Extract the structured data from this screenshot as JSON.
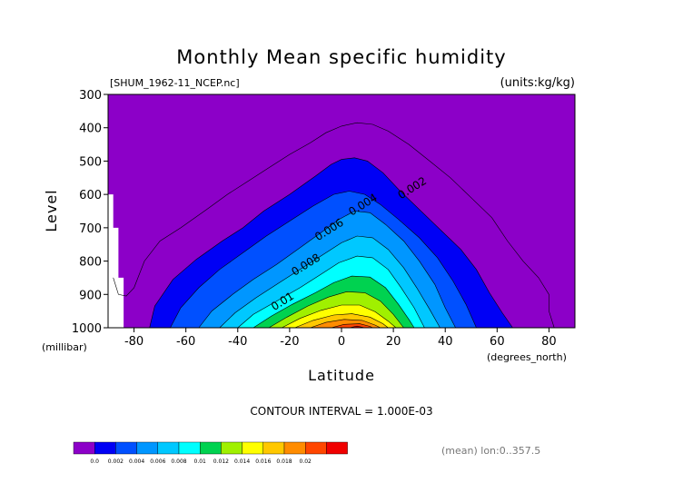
{
  "chart_data": {
    "type": "heatmap",
    "title": "Monthly Mean specific humidity",
    "file_label": "[SHUM_1962-11_NCEP.nc]",
    "units_label": "(units:kg/kg)",
    "xlabel": "Latitude",
    "x_units": "(degrees_north)",
    "ylabel": "Level",
    "y_units": "(millibar)",
    "xlim": [
      -90,
      90
    ],
    "ylim": [
      300,
      1000
    ],
    "x_ticks": [
      -80,
      -60,
      -40,
      -20,
      0,
      20,
      40,
      60,
      80
    ],
    "y_ticks": [
      300,
      400,
      500,
      600,
      700,
      800,
      900,
      1000
    ],
    "y_inverted": true,
    "contour_interval_label": "CONTOUR INTERVAL = 1.000E-03",
    "mean_label": "(mean) lon:0..357.5",
    "contour_labels": [
      {
        "text": "0.002",
        "lat": 28,
        "level": 590
      },
      {
        "text": "0.004",
        "lat": 9,
        "level": 640
      },
      {
        "text": "0.006",
        "lat": -4,
        "level": 715
      },
      {
        "text": "0.008",
        "lat": -13,
        "level": 820
      },
      {
        "text": "0.01",
        "lat": -22,
        "level": 930
      }
    ],
    "colorbar": {
      "levels": [
        "0.0",
        "0.002",
        "0.004",
        "0.006",
        "0.008",
        "0.01",
        "0.012",
        "0.014",
        "0.016",
        "0.018",
        "0.02"
      ],
      "colors": [
        "#8c00c8",
        "#0000f5",
        "#0050ff",
        "#0096ff",
        "#00c8ff",
        "#00ffff",
        "#00d250",
        "#a0f000",
        "#ffff00",
        "#ffc800",
        "#ff8c00",
        "#ff4600",
        "#f00000"
      ]
    },
    "contours": [
      {
        "level": 0.002,
        "color_index": 1,
        "points": [
          [
            -74,
            1000
          ],
          [
            -72,
            935
          ],
          [
            -65,
            855
          ],
          [
            -56,
            795
          ],
          [
            -46,
            740
          ],
          [
            -38,
            700
          ],
          [
            -30,
            650
          ],
          [
            -20,
            600
          ],
          [
            -10,
            545
          ],
          [
            -4,
            510
          ],
          [
            0,
            495
          ],
          [
            5,
            490
          ],
          [
            10,
            500
          ],
          [
            16,
            535
          ],
          [
            22,
            585
          ],
          [
            30,
            645
          ],
          [
            38,
            705
          ],
          [
            46,
            765
          ],
          [
            52,
            825
          ],
          [
            57,
            895
          ],
          [
            62,
            955
          ],
          [
            66,
            1000
          ]
        ]
      },
      {
        "level": 0.003,
        "color_index": 2,
        "points": [
          [
            -66,
            1000
          ],
          [
            -62,
            940
          ],
          [
            -55,
            880
          ],
          [
            -47,
            825
          ],
          [
            -38,
            775
          ],
          [
            -29,
            725
          ],
          [
            -20,
            680
          ],
          [
            -11,
            635
          ],
          [
            -3,
            600
          ],
          [
            3,
            590
          ],
          [
            9,
            600
          ],
          [
            15,
            630
          ],
          [
            22,
            675
          ],
          [
            30,
            730
          ],
          [
            37,
            790
          ],
          [
            43,
            860
          ],
          [
            48,
            930
          ],
          [
            52,
            1000
          ]
        ]
      },
      {
        "level": 0.004,
        "color_index": 3,
        "points": [
          [
            -55,
            1000
          ],
          [
            -50,
            950
          ],
          [
            -42,
            900
          ],
          [
            -34,
            855
          ],
          [
            -25,
            810
          ],
          [
            -16,
            760
          ],
          [
            -8,
            715
          ],
          [
            -1,
            675
          ],
          [
            5,
            650
          ],
          [
            11,
            655
          ],
          [
            17,
            690
          ],
          [
            24,
            740
          ],
          [
            30,
            800
          ],
          [
            36,
            870
          ],
          [
            40,
            940
          ],
          [
            44,
            1000
          ]
        ]
      },
      {
        "level": 0.005,
        "color_index": 4,
        "points": [
          [
            -47,
            1000
          ],
          [
            -41,
            955
          ],
          [
            -33,
            910
          ],
          [
            -24,
            865
          ],
          [
            -15,
            820
          ],
          [
            -7,
            780
          ],
          [
            0,
            745
          ],
          [
            6,
            725
          ],
          [
            12,
            730
          ],
          [
            18,
            765
          ],
          [
            24,
            820
          ],
          [
            29,
            880
          ],
          [
            34,
            945
          ],
          [
            38,
            1000
          ]
        ]
      },
      {
        "level": 0.006,
        "color_index": 5,
        "points": [
          [
            -40,
            1000
          ],
          [
            -34,
            960
          ],
          [
            -25,
            920
          ],
          [
            -16,
            880
          ],
          [
            -8,
            840
          ],
          [
            -1,
            805
          ],
          [
            6,
            785
          ],
          [
            12,
            790
          ],
          [
            18,
            825
          ],
          [
            23,
            880
          ],
          [
            28,
            940
          ],
          [
            32,
            1000
          ]
        ]
      },
      {
        "level": 0.007,
        "color_index": 6,
        "points": [
          [
            -34,
            1000
          ],
          [
            -27,
            965
          ],
          [
            -19,
            930
          ],
          [
            -10,
            895
          ],
          [
            -3,
            865
          ],
          [
            4,
            845
          ],
          [
            11,
            848
          ],
          [
            17,
            880
          ],
          [
            22,
            930
          ],
          [
            26,
            975
          ],
          [
            28,
            1000
          ]
        ]
      },
      {
        "level": 0.008,
        "color_index": 7,
        "points": [
          [
            -28,
            1000
          ],
          [
            -21,
            968
          ],
          [
            -13,
            935
          ],
          [
            -5,
            908
          ],
          [
            2,
            892
          ],
          [
            9,
            895
          ],
          [
            15,
            920
          ],
          [
            20,
            960
          ],
          [
            24,
            1000
          ]
        ]
      },
      {
        "level": 0.01,
        "color_index": 8,
        "points": [
          [
            -23,
            1000
          ],
          [
            -16,
            972
          ],
          [
            -8,
            948
          ],
          [
            0,
            932
          ],
          [
            7,
            932
          ],
          [
            13,
            952
          ],
          [
            18,
            980
          ],
          [
            21,
            1000
          ]
        ]
      },
      {
        "level": 0.012,
        "color_index": 9,
        "points": [
          [
            -18,
            1000
          ],
          [
            -11,
            978
          ],
          [
            -3,
            962
          ],
          [
            4,
            958
          ],
          [
            11,
            968
          ],
          [
            16,
            988
          ],
          [
            18,
            1000
          ]
        ]
      },
      {
        "level": 0.014,
        "color_index": 10,
        "points": [
          [
            -12,
            1000
          ],
          [
            -6,
            984
          ],
          [
            1,
            975
          ],
          [
            8,
            978
          ],
          [
            13,
            992
          ],
          [
            15,
            1000
          ]
        ]
      },
      {
        "level": 0.016,
        "color_index": 11,
        "points": [
          [
            -4,
            1000
          ],
          [
            1,
            990
          ],
          [
            7,
            988
          ],
          [
            11,
            996
          ],
          [
            12,
            1000
          ]
        ]
      },
      {
        "level": 0.018,
        "color_index": 12,
        "points": [
          [
            3,
            1000
          ],
          [
            6,
            995
          ],
          [
            9,
            1000
          ]
        ]
      }
    ],
    "outer_contour_0_001": [
      [
        -88,
        850
      ],
      [
        -86,
        900
      ],
      [
        -83,
        905
      ],
      [
        -80,
        880
      ],
      [
        -76,
        800
      ],
      [
        -70,
        740
      ],
      [
        -62,
        700
      ],
      [
        -52,
        645
      ],
      [
        -44,
        600
      ],
      [
        -36,
        560
      ],
      [
        -28,
        520
      ],
      [
        -20,
        480
      ],
      [
        -12,
        445
      ],
      [
        -6,
        415
      ],
      [
        0,
        395
      ],
      [
        6,
        385
      ],
      [
        12,
        390
      ],
      [
        18,
        410
      ],
      [
        26,
        450
      ],
      [
        34,
        500
      ],
      [
        42,
        550
      ],
      [
        50,
        610
      ],
      [
        58,
        670
      ],
      [
        64,
        740
      ],
      [
        70,
        800
      ],
      [
        76,
        850
      ],
      [
        80,
        900
      ],
      [
        80,
        950
      ],
      [
        82,
        1000
      ]
    ],
    "missing_region": [
      [
        -90,
        600
      ],
      [
        -88,
        600
      ],
      [
        -88,
        700
      ],
      [
        -86,
        700
      ],
      [
        -86,
        850
      ],
      [
        -84,
        850
      ],
      [
        -84,
        1000
      ],
      [
        -90,
        1000
      ]
    ]
  }
}
